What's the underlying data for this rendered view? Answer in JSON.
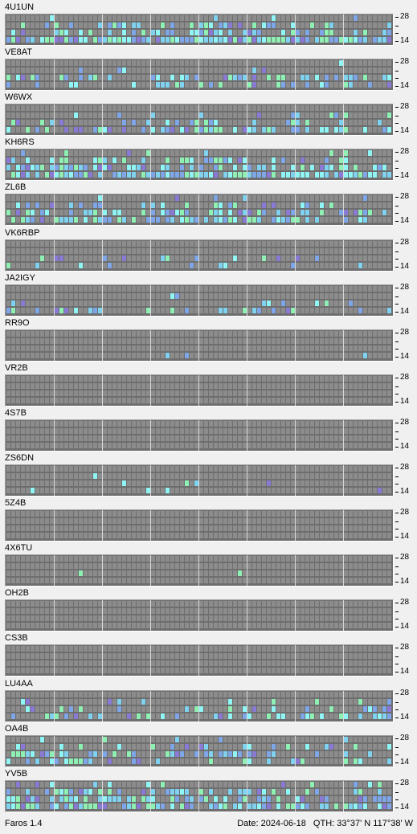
{
  "app": {
    "name": "Faros 1.4"
  },
  "status": {
    "date_label": "Date: 2024-06-18",
    "qth_label": "QTH: 33°37' N  117°38' W"
  },
  "scale": {
    "top_label": "28",
    "bottom_label": "14"
  },
  "colors": {
    "grid_bg": "#6e6e6e",
    "cell_empty": "#8c8c8c",
    "level_1": "#7ea6e8",
    "level_2": "#7fd2f0",
    "level_3": "#8ff5f5",
    "level_4": "#8ff0b4",
    "level_5": "#8a7ad6"
  },
  "beacons": [
    {
      "callsign": "4U1UN",
      "band_activity": [
        0.05,
        0.3,
        0.55,
        0.95
      ]
    },
    {
      "callsign": "VE8AT",
      "band_activity": [
        0.02,
        0.05,
        0.3,
        0.2
      ]
    },
    {
      "callsign": "W6WX",
      "band_activity": [
        0.0,
        0.1,
        0.35,
        0.5
      ]
    },
    {
      "callsign": "KH6RS",
      "band_activity": [
        0.1,
        0.4,
        0.6,
        0.8
      ]
    },
    {
      "callsign": "ZL6B",
      "band_activity": [
        0.1,
        0.3,
        0.45,
        0.55
      ]
    },
    {
      "callsign": "VK6RBP",
      "band_activity": [
        0.0,
        0.02,
        0.15,
        0.12
      ]
    },
    {
      "callsign": "JA2IGY",
      "band_activity": [
        0.0,
        0.02,
        0.08,
        0.3
      ]
    },
    {
      "callsign": "RR9O",
      "band_activity": [
        0.0,
        0.0,
        0.0,
        0.02
      ]
    },
    {
      "callsign": "VR2B",
      "band_activity": [
        0.0,
        0.0,
        0.0,
        0.0
      ]
    },
    {
      "callsign": "4S7B",
      "band_activity": [
        0.0,
        0.0,
        0.0,
        0.0
      ]
    },
    {
      "callsign": "ZS6DN",
      "band_activity": [
        0.0,
        0.02,
        0.12,
        0.08
      ]
    },
    {
      "callsign": "5Z4B",
      "band_activity": [
        0.0,
        0.0,
        0.0,
        0.0
      ]
    },
    {
      "callsign": "4X6TU",
      "band_activity": [
        0.0,
        0.0,
        0.01,
        0.01
      ]
    },
    {
      "callsign": "OH2B",
      "band_activity": [
        0.0,
        0.0,
        0.0,
        0.0
      ]
    },
    {
      "callsign": "CS3B",
      "band_activity": [
        0.0,
        0.0,
        0.0,
        0.0
      ]
    },
    {
      "callsign": "LU4AA",
      "band_activity": [
        0.0,
        0.1,
        0.25,
        0.4
      ]
    },
    {
      "callsign": "OA4B",
      "band_activity": [
        0.05,
        0.25,
        0.4,
        0.35
      ]
    },
    {
      "callsign": "YV5B",
      "band_activity": [
        0.1,
        0.4,
        0.65,
        0.7
      ]
    }
  ]
}
